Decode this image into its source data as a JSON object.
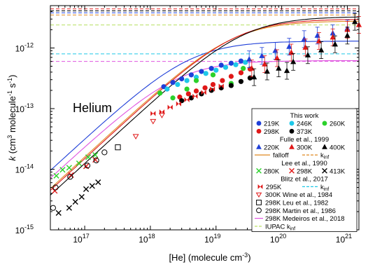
{
  "chart_data": {
    "type": "scatter",
    "title": "",
    "panel_label": "Helium",
    "xlabel_parts": [
      "[He] (molecule cm",
      "-3",
      ")"
    ],
    "ylabel_parts": [
      "k",
      " (cm",
      "3",
      " molecule",
      "-1",
      " s",
      "-1",
      ")"
    ],
    "xscale": "log",
    "yscale": "log",
    "xlim": [
      3e+16,
      1.5e+21
    ],
    "ylim": [
      1e-15,
      5e-12
    ],
    "x_ticks": [
      {
        "value": 1e+17,
        "base": "10",
        "exp": "17"
      },
      {
        "value": 1e+18,
        "base": "10",
        "exp": "18"
      },
      {
        "value": 1e+19,
        "base": "10",
        "exp": "19"
      },
      {
        "value": 1e+20,
        "base": "10",
        "exp": "20"
      },
      {
        "value": 1e+21,
        "base": "10",
        "exp": "21"
      }
    ],
    "y_ticks": [
      {
        "value": 1e-15,
        "base": "10",
        "exp": "-15"
      },
      {
        "value": 1e-14,
        "base": "10",
        "exp": "-14"
      },
      {
        "value": 1e-13,
        "base": "10",
        "exp": "-13"
      },
      {
        "value": 1e-12,
        "base": "10",
        "exp": "-12"
      }
    ],
    "legend": {
      "placement": "bottom-right",
      "rows": [
        {
          "type": "header",
          "text": "This work"
        },
        {
          "type": "entries",
          "items": [
            {
              "marker": "circle",
              "color": "#1f3fd8",
              "label": "219K"
            },
            {
              "marker": "circle",
              "color": "#1ec8e8",
              "label": "246K"
            },
            {
              "marker": "circle",
              "color": "#2bd12b",
              "label": "260K"
            }
          ]
        },
        {
          "type": "entries",
          "items": [
            {
              "marker": "circle",
              "color": "#e01818",
              "label": "298K"
            },
            {
              "marker": "circle",
              "color": "#000000",
              "label": "373K"
            }
          ]
        },
        {
          "type": "header",
          "text": "Fulle et al., 1999"
        },
        {
          "type": "entries",
          "items": [
            {
              "marker": "triangle",
              "color": "#1f3fd8",
              "label": "220K"
            },
            {
              "marker": "triangle",
              "color": "#e01818",
              "label": "300K"
            },
            {
              "marker": "triangle",
              "color": "#000000",
              "label": "400K"
            }
          ]
        },
        {
          "type": "lines",
          "items": [
            {
              "style": "solid",
              "color": "#e08a20",
              "label": "falloff"
            },
            {
              "style": "dashed",
              "color": "#e08a20",
              "label": "k",
              "sub": "inf"
            }
          ]
        },
        {
          "type": "header",
          "text": "Lee et al., 1990"
        },
        {
          "type": "entries",
          "items": [
            {
              "marker": "x",
              "color": "#2bd12b",
              "label": "280K"
            },
            {
              "marker": "x",
              "color": "#e01818",
              "label": "298K"
            },
            {
              "marker": "x",
              "color": "#000000",
              "label": "413K"
            }
          ]
        },
        {
          "type": "header",
          "text": "Blitz et al., 2017"
        },
        {
          "type": "lines",
          "items": [
            {
              "style": "bowtie",
              "color": "#e01818",
              "label": "295K"
            },
            {
              "style": "dashed",
              "color": "#1ec8e8",
              "label": "k",
              "sub": "inf"
            }
          ]
        },
        {
          "type": "single",
          "marker": "triangle-down-open",
          "color": "#e01818",
          "label": "300K Wine et al., 1984"
        },
        {
          "type": "single",
          "marker": "square-open",
          "color": "#000000",
          "label": "298K Leu et al., 1982"
        },
        {
          "type": "single",
          "marker": "circle-open",
          "color": "#000000",
          "label": "298K Martin et al., 1986"
        },
        {
          "type": "single",
          "marker": "line",
          "color": "#e055e0",
          "label": "298K Medeiros et al., 2018"
        },
        {
          "type": "single",
          "marker": "dashed-line",
          "color": "#b8e060",
          "label": "IUPAC k",
          "sub": "inf"
        }
      ]
    },
    "horizontal_limits": [
      {
        "name": "top-1",
        "color": "#e01818",
        "y": 4.4e-12
      },
      {
        "name": "top-2",
        "color": "#000000",
        "y": 4.1e-12
      },
      {
        "name": "top-3",
        "color": "#1f3fd8",
        "y": 3.8e-12
      },
      {
        "name": "top-4",
        "color": "#e08a20",
        "y": 3.5e-12
      },
      {
        "name": "iupac",
        "color": "#b8e060",
        "y": 2.4e-12
      },
      {
        "name": "blitz",
        "color": "#1ec8e8",
        "y": 8e-13
      },
      {
        "name": "medeiros",
        "color": "#e055e0",
        "y": 6e-13
      }
    ],
    "curves": [
      {
        "name": "blue-fit",
        "color": "#1f3fd8",
        "k0": 3.2e-31,
        "kinf": 1.3e-12
      },
      {
        "name": "pink-fit",
        "color": "#e055e0",
        "k0": 2.4e-31,
        "kinf": 6.2e-13
      },
      {
        "name": "orange-fit",
        "color": "#e08a20",
        "k0": 1.6e-31,
        "kinf": 2.8e-12
      },
      {
        "name": "red-fit",
        "color": "#e01818",
        "k0": 1.5e-31,
        "kinf": 3e-12
      },
      {
        "name": "black-fit",
        "color": "#000000",
        "k0": 1.25e-31,
        "kinf": 3.3e-12
      }
    ],
    "series": [
      {
        "name": "219K",
        "marker": "circle",
        "color": "#1f3fd8",
        "points": [
          [
            1.6e+18,
            2.3e-13
          ],
          [
            2.2e+18,
            2.7e-13
          ],
          [
            3e+18,
            3.1e-13
          ],
          [
            4.2e+18,
            3.6e-13
          ],
          [
            6e+18,
            4.1e-13
          ],
          [
            8.5e+18,
            4.6e-13
          ],
          [
            1.2e+19,
            5.2e-13
          ],
          [
            1.7e+19,
            5.6e-13
          ],
          [
            2.4e+19,
            6.1e-13
          ]
        ]
      },
      {
        "name": "246K",
        "marker": "circle",
        "color": "#1ec8e8",
        "points": [
          [
            1.8e+18,
            2.1e-13
          ],
          [
            2.6e+18,
            2.5e-13
          ],
          [
            3.6e+18,
            2.9e-13
          ],
          [
            5e+18,
            3.3e-13
          ],
          [
            7e+18,
            3.8e-13
          ],
          [
            1e+19,
            4.3e-13
          ],
          [
            1.4e+19,
            4.8e-13
          ],
          [
            2e+19,
            5.3e-13
          ],
          [
            2.8e+19,
            5.8e-13
          ]
        ]
      },
      {
        "name": "260K",
        "marker": "circle",
        "color": "#2bd12b",
        "points": [
          [
            1.4e+18,
            1.8e-13
          ],
          [
            2.2e+18,
            1.5e-13
          ],
          [
            3.6e+18,
            2.1e-13
          ],
          [
            5e+18,
            2.9e-13
          ],
          [
            9e+18,
            3.6e-13
          ],
          [
            1.7e+19,
            2.6e-13
          ],
          [
            2.6e+19,
            4.6e-13
          ]
        ]
      },
      {
        "name": "298K",
        "marker": "circle",
        "color": "#e01818",
        "points": [
          [
            2.8e+18,
            1.55e-13
          ],
          [
            3.8e+18,
            1.75e-13
          ],
          [
            5e+18,
            1.95e-13
          ],
          [
            6.8e+18,
            2.2e-13
          ],
          [
            9e+18,
            2.5e-13
          ],
          [
            1.25e+19,
            2.9e-13
          ],
          [
            1.7e+19,
            3.4e-13
          ],
          [
            2.4e+19,
            3.9e-13
          ],
          [
            3.3e+19,
            4.5e-13
          ]
        ]
      },
      {
        "name": "373K",
        "marker": "circle",
        "color": "#000000",
        "points": [
          [
            3e+18,
            1.35e-13
          ],
          [
            4.2e+18,
            1.5e-13
          ],
          [
            6e+18,
            1.75e-13
          ],
          [
            8.5e+18,
            2e-13
          ],
          [
            1.2e+19,
            2.2e-13
          ],
          [
            1.7e+19,
            2.4e-13
          ],
          [
            2.4e+19,
            2.8e-13
          ],
          [
            3.3e+19,
            3.2e-13
          ]
        ]
      },
      {
        "name": "Fulle 220K",
        "marker": "triangle",
        "color": "#1f3fd8",
        "points": [
          [
            3.2e+19,
            6.5e-13
          ],
          [
            5e+19,
            7.4e-13
          ],
          [
            8e+19,
            9e-13
          ],
          [
            1.3e+20,
            1.05e-12
          ],
          [
            2.2e+20,
            1.4e-12
          ],
          [
            3.5e+20,
            1.6e-12
          ],
          [
            6e+20,
            1.75e-12
          ],
          [
            1e+21,
            2.1e-12
          ]
        ]
      },
      {
        "name": "Fulle 300K",
        "marker": "triangle",
        "color": "#e01818",
        "points": [
          [
            3.5e+19,
            4.6e-13
          ],
          [
            5.5e+19,
            5.4e-13
          ],
          [
            8.5e+19,
            6.8e-13
          ],
          [
            1.4e+20,
            8.4e-13
          ],
          [
            2.3e+20,
            1.02e-12
          ],
          [
            3.7e+20,
            1.3e-12
          ],
          [
            6e+20,
            1.5e-12
          ],
          [
            1e+21,
            2e-12
          ],
          [
            1.5e+21,
            2.4e-12
          ]
        ]
      },
      {
        "name": "Fulle 400K",
        "marker": "triangle",
        "color": "#000000",
        "points": [
          [
            3.8e+19,
            3.3e-13
          ],
          [
            6e+19,
            4.1e-13
          ],
          [
            9e+19,
            4.6e-13
          ],
          [
            1.2e+20,
            4.2e-13
          ],
          [
            1.5e+20,
            5.9e-13
          ],
          [
            2.5e+20,
            7.6e-13
          ],
          [
            4e+20,
            9.2e-13
          ],
          [
            6.5e+20,
            1.15e-12
          ],
          [
            1e+21,
            1.6e-12
          ],
          [
            1.3e+21,
            2.7e-12
          ]
        ]
      },
      {
        "name": "Lee 280K",
        "marker": "x",
        "color": "#2bd12b",
        "points": [
          [
            3.7e+16,
            7.8e-15
          ],
          [
            4.6e+16,
            9.8e-15
          ],
          [
            5.8e+16,
            1.06e-14
          ],
          [
            8.2e+16,
            1.25e-14
          ],
          [
            1.13e+17,
            1.58e-14
          ],
          [
            1.45e+17,
            1.72e-14
          ]
        ]
      },
      {
        "name": "Lee 298K",
        "marker": "x",
        "color": "#e01818",
        "points": [
          [
            3.5e+16,
            4.4e-15
          ],
          [
            6.2e+16,
            8e-15
          ],
          [
            1.05e+17,
            1.12e-14
          ],
          [
            1.45e+17,
            1.43e-14
          ]
        ]
      },
      {
        "name": "Lee 413K",
        "marker": "x",
        "color": "#000000",
        "points": [
          [
            4e+16,
            1.9e-15
          ],
          [
            5.8e+16,
            2.3e-15
          ],
          [
            7.2e+16,
            2.9e-15
          ],
          [
            9e+16,
            3.5e-15
          ],
          [
            1.05e+17,
            4.7e-15
          ],
          [
            1.3e+17,
            5.3e-15
          ],
          [
            1.6e+17,
            6.1e-15
          ]
        ]
      },
      {
        "name": "Blitz 295K",
        "marker": "bowtie",
        "color": "#e01818",
        "points": [
          [
            1.1e+18,
            8.3e-14
          ],
          [
            1.5e+18,
            8.8e-14
          ],
          [
            2e+18,
            1.05e-13
          ],
          [
            2.7e+18,
            1.2e-13
          ],
          [
            3.6e+18,
            1.4e-13
          ],
          [
            4.8e+18,
            1.6e-13
          ],
          [
            6.5e+18,
            1.85e-13
          ],
          [
            8.8e+18,
            2.1e-13
          ],
          [
            1.2e+19,
            2.35e-13
          ]
        ]
      },
      {
        "name": "Wine 1984",
        "marker": "triangle-down-open",
        "color": "#e01818",
        "points": [
          [
            6e+17,
            3.5e-14
          ],
          [
            1.1e+18,
            6.2e-14
          ],
          [
            1.5e+18,
            7.8e-14
          ]
        ]
      },
      {
        "name": "Leu 1982",
        "marker": "square-open",
        "color": "#000000",
        "points": [
          [
            3.2e+17,
            2.3e-14
          ]
        ]
      },
      {
        "name": "Martin 1986",
        "marker": "circle-open",
        "color": "#000000",
        "points": [
          [
            3.3e+16,
            2.3e-15
          ],
          [
            3.6e+16,
            5e-15
          ],
          [
            6e+16,
            7.5e-15
          ],
          [
            1.1e+17,
            1.15e-14
          ],
          [
            1.5e+17,
            1.4e-14
          ],
          [
            2e+17,
            1.9e-14
          ]
        ]
      }
    ]
  }
}
